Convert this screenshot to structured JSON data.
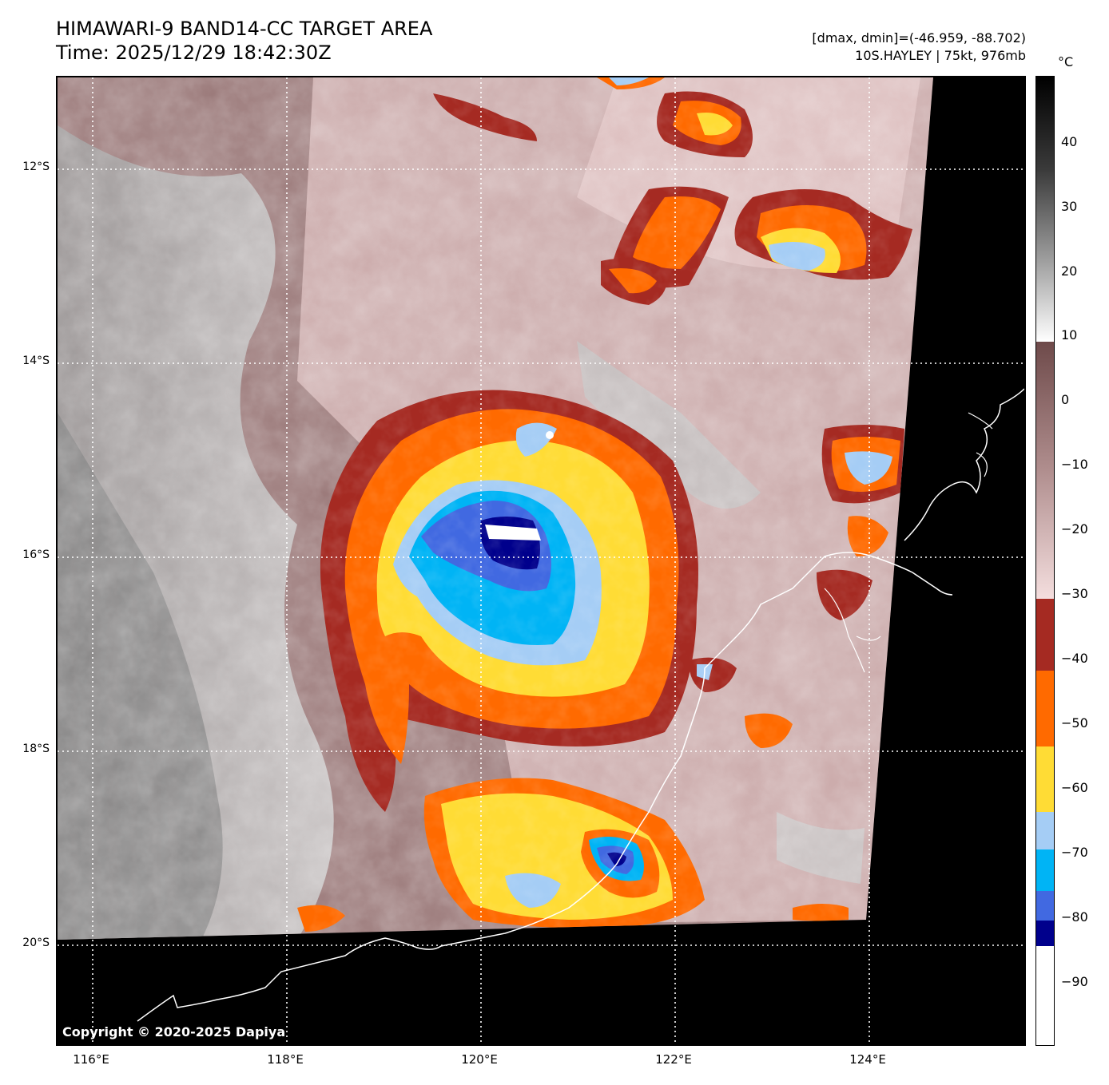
{
  "header": {
    "title_line1": "HIMAWARI-9 BAND14-CC TARGET AREA",
    "title_line2": "Time: 2025/12/29 18:42:30Z",
    "dminmax": "[dmax, dmin]=(-46.959, -88.702)",
    "storm": "10S.HAYLEY | 75kt, 976mb"
  },
  "colorbar": {
    "unit": "°C",
    "ticks": [
      "40",
      "30",
      "20",
      "10",
      "0",
      "−10",
      "−20",
      "−30",
      "−40",
      "−50",
      "−60",
      "−70",
      "−80",
      "−90"
    ],
    "colors": {
      "warm_black": "#000000",
      "gray": "#808080",
      "white": "#ffffff",
      "brown": "#7a5454",
      "pink": "#f2d4d4",
      "dark_red": "#a52a22",
      "orange": "#ff6a00",
      "yellow": "#ffdc35",
      "light_blue": "#a5cdf5",
      "cyan": "#00b4f5",
      "royal_blue": "#4169e1",
      "navy": "#00008c"
    }
  },
  "map": {
    "lat_labels": [
      "12°S",
      "14°S",
      "16°S",
      "18°S",
      "20°S"
    ],
    "lon_labels": [
      "116°E",
      "118°E",
      "120°E",
      "122°E",
      "124°E"
    ],
    "copyright": "Copyright © 2020-2025 Dapiya"
  }
}
